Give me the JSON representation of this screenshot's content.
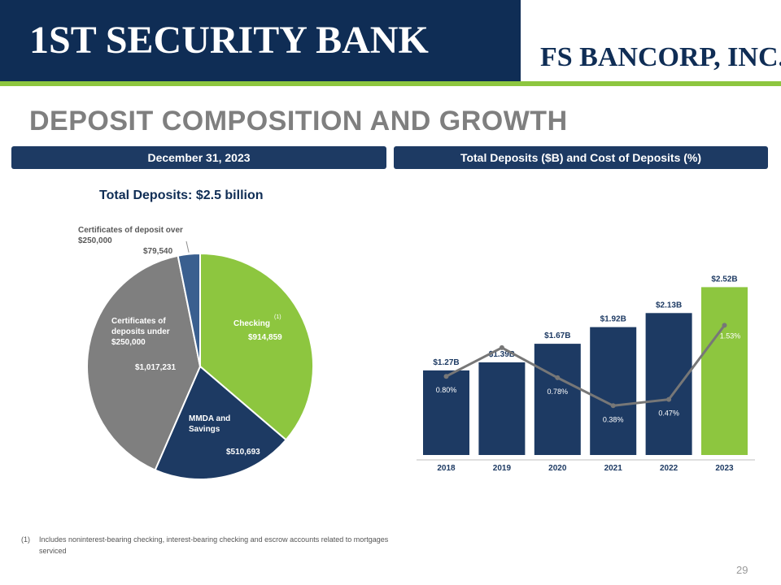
{
  "header": {
    "logo_left": "1ST SECURITY BANK",
    "logo_right": "FS BANCORP, INC."
  },
  "title": "DEPOSIT COMPOSITION AND GROWTH",
  "left_panel": {
    "banner": "December 31, 2023",
    "total_label": "Total Deposits:  $2.5 billion"
  },
  "right_panel": {
    "banner": "Total Deposits ($B) and Cost of Deposits (%)"
  },
  "footnote": {
    "mark": "(1)",
    "text": "Includes noninterest-bearing checking, interest-bearing checking and escrow accounts related to mortgages serviced"
  },
  "page_number": "29",
  "colors": {
    "navy": "#1d3a63",
    "green": "#8dc63f",
    "gray": "#7f7f7f",
    "blue": "#3a5f8f",
    "line": "#777777"
  },
  "chart_data": [
    {
      "type": "pie",
      "title": "Total Deposits:  $2.5 billion",
      "slices": [
        {
          "label_lines": [
            "Checking"
          ],
          "superscript": "(1)",
          "value_label": "$914,859",
          "value": 914859,
          "color": "#8dc63f"
        },
        {
          "label_lines": [
            "MMDA and",
            "Savings"
          ],
          "value_label": "$510,693",
          "value": 510693,
          "color": "#1d3a63"
        },
        {
          "label_lines": [
            "Certificates of",
            "deposits under",
            "$250,000"
          ],
          "value_label": "$1,017,231",
          "value": 1017231,
          "color": "#7f7f7f"
        },
        {
          "label_lines": [
            "Certificates of deposit over",
            "$250,000"
          ],
          "value_label": "$79,540",
          "value": 79540,
          "color": "#3a5f8f"
        }
      ]
    },
    {
      "type": "bar",
      "title": "Total Deposits ($B) and Cost of Deposits (%)",
      "categories": [
        "2018",
        "2019",
        "2020",
        "2021",
        "2022",
        "2023"
      ],
      "series": [
        {
          "values": [
            1.27,
            1.39,
            1.67,
            1.92,
            2.13,
            2.52
          ],
          "labels": [
            "$1.27B",
            "$1.39B",
            "$1.67B",
            "$1.92B",
            "$2.13B",
            "$2.52B"
          ]
        },
        {
          "type": "line",
          "values": [
            0.8,
            1.21,
            0.78,
            0.38,
            0.47,
            1.53
          ],
          "labels": [
            "0.80%",
            "1.21%",
            "0.78%",
            "0.38%",
            "0.47%",
            "1.53%"
          ]
        }
      ],
      "highlight_index": 5
    }
  ]
}
